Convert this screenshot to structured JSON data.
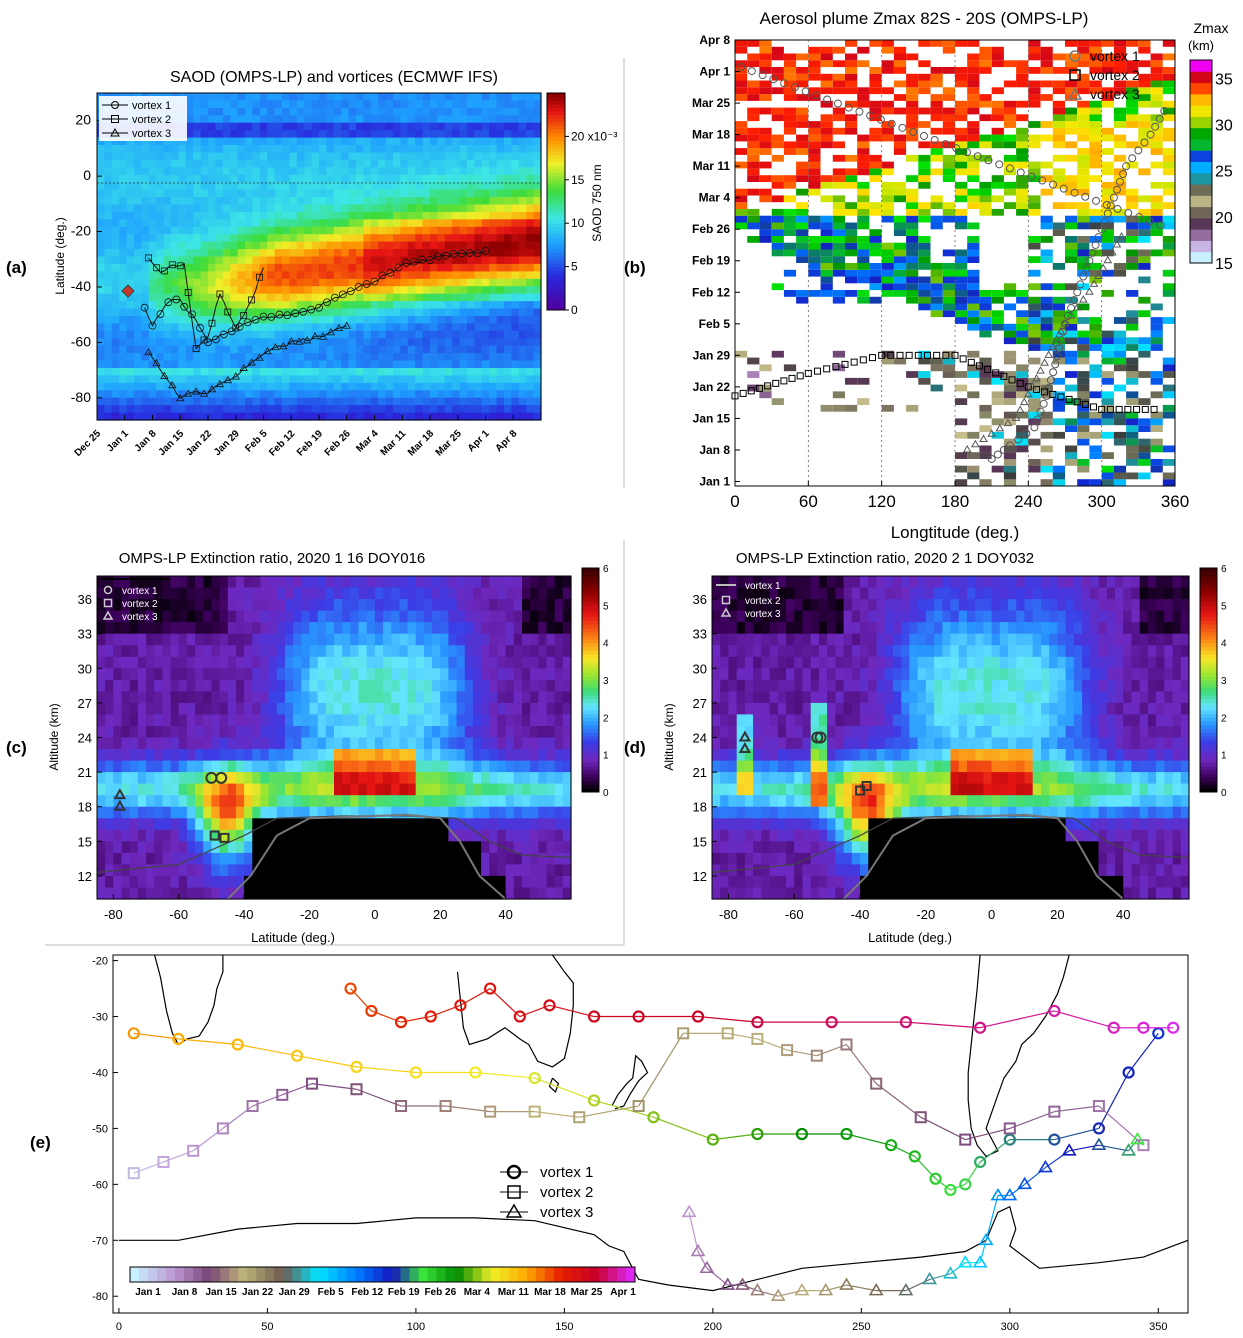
{
  "panels": {
    "a": {
      "letter": "(a)",
      "title": "SAOD (OMPS-LP) and vortices (ECMWF IFS)",
      "ylabel": "Latitude (deg.)",
      "colorbar_label": "SAOD 750 nm",
      "colorbar_ticks": [
        "0",
        "5",
        "10",
        "15",
        "20 x10⁻³"
      ],
      "yticks": [
        "20",
        "0",
        "-20",
        "-40",
        "-60",
        "-80"
      ],
      "xticks": [
        "Dec 25",
        "Jan 1",
        "Jan 8",
        "Jan 15",
        "Jan 22",
        "Jan 29",
        "Feb 5",
        "Feb 12",
        "Feb 19",
        "Feb 26",
        "Mar 4",
        "Mar 11",
        "Mar 18",
        "Mar 25",
        "Apr 1",
        "Apr 8"
      ],
      "legend": [
        "vortex 1",
        "vortex 2",
        "vortex 3"
      ]
    },
    "b": {
      "letter": "(b)",
      "title": "Aerosol plume Zmax 82S - 20S (OMPS-LP)",
      "colorbar_title": "Zmax",
      "colorbar_unit": "(km)",
      "colorbar_ticks": [
        "35",
        "30",
        "25",
        "20",
        "15"
      ],
      "xlabel": "Longtitude (deg.)",
      "xticks": [
        "0",
        "60",
        "120",
        "180",
        "240",
        "300",
        "360"
      ],
      "yticks": [
        "Apr 8",
        "Apr 1",
        "Mar 25",
        "Mar 18",
        "Mar 11",
        "Mar 4",
        "Feb 26",
        "Feb 19",
        "Feb 12",
        "Feb 5",
        "Jan 29",
        "Jan 22",
        "Jan 15",
        "Jan 8",
        "Jan 1"
      ],
      "legend": [
        "vortex 1",
        "vortex 2",
        "vortex 3"
      ]
    },
    "c": {
      "letter": "(c)",
      "title": "OMPS-LP Extinction ratio,  2020 1 16 DOY016",
      "ylabel": "Altitude (km)",
      "xlabel": "Latitude (deg.)",
      "yticks": [
        "36",
        "33",
        "30",
        "27",
        "24",
        "21",
        "18",
        "15",
        "12"
      ],
      "xticks": [
        "-80",
        "-60",
        "-40",
        "-20",
        "0",
        "20",
        "40"
      ],
      "colorbar_ticks": [
        "6",
        "5",
        "4",
        "3",
        "2",
        "1",
        "0"
      ],
      "legend": [
        "vortex 1",
        "vortex 2",
        "vortex 3"
      ]
    },
    "d": {
      "letter": "(d)",
      "title": "OMPS-LP Extinction ratio,  2020 2 1 DOY032",
      "ylabel": "Altitude (km)",
      "xlabel": "Latitude (deg.)",
      "yticks": [
        "36",
        "33",
        "30",
        "27",
        "24",
        "21",
        "18",
        "15",
        "12"
      ],
      "xticks": [
        "-80",
        "-60",
        "-40",
        "-20",
        "0",
        "20",
        "40"
      ],
      "colorbar_ticks": [
        "6",
        "5",
        "4",
        "3",
        "2",
        "1",
        "0"
      ],
      "legend": [
        "vortex 1",
        "vortex 2",
        "vortex 3"
      ]
    },
    "e": {
      "letter": "(e)",
      "yticks": [
        "-20",
        "-30",
        "-40",
        "-50",
        "-60",
        "-70",
        "-80"
      ],
      "xticks": [
        "0",
        "50",
        "100",
        "150",
        "200",
        "250",
        "300",
        "350"
      ],
      "legend": [
        "vortex 1",
        "vortex 2",
        "vortex 3"
      ],
      "date_bar": [
        "Jan 1",
        "Jan 8",
        "Jan 15",
        "Jan 22",
        "Jan 29",
        "Feb 5",
        "Feb 12",
        "Feb 19",
        "Feb 26",
        "Mar 4",
        "Mar 11",
        "Mar 18",
        "Mar 25",
        "Apr 1"
      ]
    }
  },
  "chart_data": [
    {
      "type": "heatmap",
      "panel": "a",
      "title": "SAOD (OMPS-LP) and vortices (ECMWF IFS)",
      "ylabel": "Latitude (deg.)",
      "colorbar_label": "SAOD 750 nm",
      "ylim": [
        -88,
        30
      ],
      "xlim_days": [
        "Dec 25",
        "Apr 8"
      ],
      "colorbar_range": [
        0,
        0.025
      ],
      "series": [
        {
          "name": "vortex 1",
          "x": [
            "Jan 6",
            "Jan 8",
            "Jan 12",
            "Jan 15",
            "Jan 19",
            "Jan 22",
            "Jan 29",
            "Feb 5",
            "Feb 12",
            "Feb 19",
            "Feb 26",
            "Mar 4",
            "Mar 11",
            "Mar 18",
            "Mar 25",
            "Apr 1"
          ],
          "y": [
            -48,
            -54,
            -45,
            -45,
            -52,
            -60,
            -55,
            -51,
            -50,
            -47,
            -42,
            -38,
            -32,
            -30,
            -28,
            -27
          ]
        },
        {
          "name": "vortex 2",
          "x": [
            "Jan 7",
            "Jan 10",
            "Jan 13",
            "Jan 16",
            "Jan 19",
            "Jan 22",
            "Jan 25",
            "Jan 29",
            "Feb 2",
            "Feb 5"
          ],
          "y": [
            -30,
            -35,
            -32,
            -32,
            -62,
            -58,
            -42,
            -55,
            -45,
            -33
          ]
        },
        {
          "name": "vortex 3",
          "x": [
            "Jan 7",
            "Jan 11",
            "Jan 15",
            "Jan 19",
            "Jan 22",
            "Jan 29",
            "Feb 5",
            "Feb 12",
            "Feb 19",
            "Feb 26"
          ],
          "y": [
            -64,
            -72,
            -80,
            -78,
            -78,
            -72,
            -64,
            -60,
            -58,
            -54
          ]
        }
      ]
    },
    {
      "type": "scatter",
      "panel": "b",
      "title": "Aerosol plume Zmax 82S - 20S (OMPS-LP)",
      "xlabel": "Longtitude (deg.)",
      "xlim": [
        0,
        360
      ],
      "ylim_days": [
        "Jan 1",
        "Apr 8"
      ],
      "colorbar_range_km": [
        15,
        37
      ],
      "series": [
        {
          "name": "vortex 1",
          "lon": [
            210,
            225,
            245,
            255,
            262,
            270,
            280,
            290,
            300,
            320,
            340,
            355
          ],
          "date": [
            "Jan 6",
            "Jan 9",
            "Jan 13",
            "Jan 20",
            "Jan 27",
            "Feb 5",
            "Feb 12",
            "Feb 19",
            "Feb 26",
            "Mar 11",
            "Mar 18",
            "Mar 25"
          ]
        },
        {
          "name": "vortex 2",
          "lon": [
            0,
            60,
            120,
            180,
            240,
            300,
            350
          ],
          "date": [
            "Jan 20",
            "Jan 25",
            "Jan 29",
            "Jan 29",
            "Jan 22",
            "Jan 17",
            "Jan 17"
          ]
        },
        {
          "name": "vortex 3",
          "lon": [
            190,
            230,
            270,
            290,
            320
          ],
          "date": [
            "Jan 8",
            "Jan 15",
            "Feb 5",
            "Feb 12",
            "Feb 26"
          ]
        }
      ]
    },
    {
      "type": "heatmap",
      "panel": "c",
      "title": "OMPS-LP Extinction ratio,  2020 1 16 DOY016",
      "xlabel": "Latitude (deg.)",
      "ylabel": "Altitude (km)",
      "xlim": [
        -85,
        60
      ],
      "ylim": [
        10,
        38
      ],
      "colorbar_range": [
        0,
        6
      ],
      "markers": [
        {
          "name": "vortex 1",
          "lat": [
            -50,
            -47
          ],
          "alt": [
            20.5,
            20.5
          ]
        },
        {
          "name": "vortex 2",
          "lat": [
            -49,
            -46
          ],
          "alt": [
            15.5,
            15.3
          ]
        },
        {
          "name": "vortex 3",
          "lat": [
            -78,
            -78
          ],
          "alt": [
            19,
            18
          ]
        }
      ]
    },
    {
      "type": "heatmap",
      "panel": "d",
      "title": "OMPS-LP Extinction ratio,  2020 2 1 DOY032",
      "xlabel": "Latitude (deg.)",
      "ylabel": "Altitude (km)",
      "xlim": [
        -85,
        60
      ],
      "ylim": [
        10,
        38
      ],
      "colorbar_range": [
        0,
        6
      ],
      "markers": [
        {
          "name": "vortex 1",
          "lat": [
            -53,
            -52
          ],
          "alt": [
            24,
            24
          ]
        },
        {
          "name": "vortex 2",
          "lat": [
            -40,
            -38
          ],
          "alt": [
            19.4,
            19.8
          ]
        },
        {
          "name": "vortex 3",
          "lat": [
            -75,
            -75
          ],
          "alt": [
            24,
            23
          ]
        }
      ]
    },
    {
      "type": "scatter",
      "panel": "e",
      "xlim": [
        -2,
        360
      ],
      "ylim": [
        -83,
        -19
      ],
      "series": [
        {
          "name": "vortex 1",
          "lon": [
            5,
            20,
            40,
            60,
            80,
            100,
            120,
            140,
            160,
            180,
            200,
            215,
            230,
            245,
            260,
            268,
            275,
            280,
            285,
            290,
            300,
            315,
            330,
            340,
            350
          ],
          "lat": [
            -33,
            -34,
            -35,
            -37,
            -39,
            -40,
            -40,
            -41,
            -45,
            -48,
            -52,
            -51,
            -51,
            -51,
            -53,
            -55,
            -59,
            -61,
            -60,
            -56,
            -52,
            -52,
            -50,
            -40,
            -33
          ]
        },
        {
          "name": "vortex 2",
          "lon": [
            5,
            15,
            25,
            35,
            45,
            55,
            65,
            80,
            95,
            110,
            125,
            140,
            155,
            175,
            190,
            205,
            215,
            225,
            235,
            245,
            255,
            270,
            285,
            300,
            315,
            330,
            345
          ],
          "lat": [
            -58,
            -56,
            -54,
            -50,
            -46,
            -44,
            -42,
            -43,
            -46,
            -46,
            -47,
            -47,
            -48,
            -46,
            -33,
            -33,
            -34,
            -36,
            -37,
            -35,
            -42,
            -48,
            -52,
            -50,
            -47,
            -46,
            -53
          ]
        },
        {
          "name": "vortex 3",
          "lon": [
            192,
            195,
            198,
            205,
            210,
            215,
            222,
            230,
            238,
            245,
            255,
            265,
            273,
            280,
            285,
            290,
            292,
            296,
            300,
            305,
            312,
            320,
            330,
            340,
            343
          ],
          "lat": [
            -65,
            -72,
            -75,
            -78,
            -78,
            -79,
            -80,
            -79,
            -79,
            -78,
            -79,
            -79,
            -77,
            -76,
            -74,
            -74,
            -70,
            -62,
            -62,
            -60,
            -57,
            -54,
            -53,
            -54,
            -52
          ]
        },
        {
          "name": "vortex 1 (upper)",
          "lon": [
            78,
            85,
            95,
            105,
            115,
            125,
            135,
            145,
            160,
            175,
            195,
            215,
            240,
            265,
            290,
            315,
            335,
            345,
            355
          ],
          "lat": [
            -25,
            -29,
            -31,
            -30,
            -28,
            -25,
            -30,
            -28,
            -30,
            -30,
            -30,
            -31,
            -31,
            -31,
            -32,
            -29,
            -32,
            -32,
            -32
          ]
        }
      ]
    }
  ]
}
